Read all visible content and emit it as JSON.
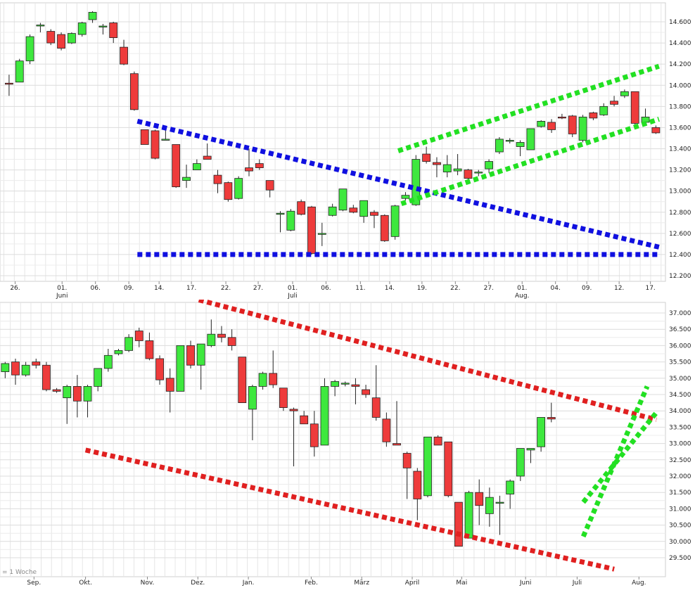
{
  "chart_data": [
    {
      "type": "candlestick",
      "interval_label": "",
      "x_ticks": [
        "26.",
        "01.",
        "06.",
        "09.",
        "14.",
        "17.",
        "22.",
        "27.",
        "01.",
        "06.",
        "11.",
        "14.",
        "19.",
        "22.",
        "27.",
        "01.",
        "04.",
        "09.",
        "12.",
        "17."
      ],
      "month_labels": [
        {
          "tick_index": 1,
          "label": "Juni"
        },
        {
          "tick_index": 8,
          "label": "Juli"
        },
        {
          "tick_index": 15,
          "label": "Aug."
        }
      ],
      "ylim": [
        12150,
        14850
      ],
      "y_ticks": [
        12200,
        12400,
        12600,
        12800,
        13000,
        13200,
        13400,
        13600,
        13800,
        14000,
        14200,
        14400,
        14600
      ],
      "y_tick_labels": [
        "12.200",
        "12.400",
        "12.600",
        "12.800",
        "13.000",
        "13.200",
        "13.400",
        "13.600",
        "13.800",
        "14.000",
        "14.200",
        "14.400",
        "14.600"
      ],
      "candles": [
        {
          "o": 14020,
          "h": 14100,
          "l": 13900,
          "c": 14010
        },
        {
          "o": 14030,
          "h": 14250,
          "l": 14030,
          "c": 14230
        },
        {
          "o": 14230,
          "h": 14480,
          "l": 14200,
          "c": 14460
        },
        {
          "o": 14570,
          "h": 14590,
          "l": 14500,
          "c": 14570
        },
        {
          "o": 14510,
          "h": 14530,
          "l": 14380,
          "c": 14400
        },
        {
          "o": 14480,
          "h": 14500,
          "l": 14330,
          "c": 14350
        },
        {
          "o": 14400,
          "h": 14500,
          "l": 14390,
          "c": 14490
        },
        {
          "o": 14480,
          "h": 14600,
          "l": 14460,
          "c": 14590
        },
        {
          "o": 14620,
          "h": 14700,
          "l": 14590,
          "c": 14690
        },
        {
          "o": 14560,
          "h": 14580,
          "l": 14480,
          "c": 14560
        },
        {
          "o": 14590,
          "h": 14600,
          "l": 14400,
          "c": 14450
        },
        {
          "o": 14360,
          "h": 14430,
          "l": 14190,
          "c": 14200
        },
        {
          "o": 14110,
          "h": 14130,
          "l": 13760,
          "c": 13770
        },
        {
          "o": 13580,
          "h": 13580,
          "l": 13440,
          "c": 13440
        },
        {
          "o": 13570,
          "h": 13580,
          "l": 13300,
          "c": 13310
        },
        {
          "o": 13490,
          "h": 13600,
          "l": 13480,
          "c": 13490
        },
        {
          "o": 13440,
          "h": 13440,
          "l": 13030,
          "c": 13040
        },
        {
          "o": 13100,
          "h": 13250,
          "l": 13030,
          "c": 13130
        },
        {
          "o": 13200,
          "h": 13300,
          "l": 13200,
          "c": 13260
        },
        {
          "o": 13330,
          "h": 13450,
          "l": 13300,
          "c": 13300
        },
        {
          "o": 13150,
          "h": 13200,
          "l": 12980,
          "c": 13070
        },
        {
          "o": 13080,
          "h": 13090,
          "l": 12900,
          "c": 12920
        },
        {
          "o": 12930,
          "h": 13140,
          "l": 12920,
          "c": 13120
        },
        {
          "o": 13220,
          "h": 13400,
          "l": 13140,
          "c": 13190
        },
        {
          "o": 13260,
          "h": 13300,
          "l": 13200,
          "c": 13220
        },
        {
          "o": 13100,
          "h": 13100,
          "l": 12940,
          "c": 13010
        },
        {
          "o": 12790,
          "h": 12810,
          "l": 12610,
          "c": 12790
        },
        {
          "o": 12630,
          "h": 12830,
          "l": 12620,
          "c": 12810
        },
        {
          "o": 12900,
          "h": 12920,
          "l": 12770,
          "c": 12780
        },
        {
          "o": 12850,
          "h": 12860,
          "l": 12400,
          "c": 12410
        },
        {
          "o": 12590,
          "h": 12700,
          "l": 12480,
          "c": 12600
        },
        {
          "o": 12770,
          "h": 12880,
          "l": 12760,
          "c": 12850
        },
        {
          "o": 12820,
          "h": 13020,
          "l": 12810,
          "c": 13020
        },
        {
          "o": 12840,
          "h": 12870,
          "l": 12790,
          "c": 12800
        },
        {
          "o": 12760,
          "h": 12910,
          "l": 12700,
          "c": 12910
        },
        {
          "o": 12800,
          "h": 12820,
          "l": 12650,
          "c": 12770
        },
        {
          "o": 12770,
          "h": 12780,
          "l": 12520,
          "c": 12530
        },
        {
          "o": 12570,
          "h": 12870,
          "l": 12540,
          "c": 12860
        },
        {
          "o": 12930,
          "h": 12990,
          "l": 12910,
          "c": 12960
        },
        {
          "o": 12870,
          "h": 13340,
          "l": 12860,
          "c": 13300
        },
        {
          "o": 13350,
          "h": 13420,
          "l": 13260,
          "c": 13280
        },
        {
          "o": 13270,
          "h": 13320,
          "l": 13130,
          "c": 13250
        },
        {
          "o": 13180,
          "h": 13340,
          "l": 13130,
          "c": 13250
        },
        {
          "o": 13190,
          "h": 13350,
          "l": 13150,
          "c": 13210
        },
        {
          "o": 13200,
          "h": 13210,
          "l": 13080,
          "c": 13120
        },
        {
          "o": 13180,
          "h": 13200,
          "l": 13140,
          "c": 13180
        },
        {
          "o": 13210,
          "h": 13300,
          "l": 13170,
          "c": 13280
        },
        {
          "o": 13370,
          "h": 13510,
          "l": 13350,
          "c": 13490
        },
        {
          "o": 13480,
          "h": 13500,
          "l": 13450,
          "c": 13480
        },
        {
          "o": 13420,
          "h": 13480,
          "l": 13330,
          "c": 13460
        },
        {
          "o": 13390,
          "h": 13590,
          "l": 13390,
          "c": 13590
        },
        {
          "o": 13610,
          "h": 13670,
          "l": 13600,
          "c": 13660
        },
        {
          "o": 13650,
          "h": 13680,
          "l": 13550,
          "c": 13580
        },
        {
          "o": 13700,
          "h": 13730,
          "l": 13680,
          "c": 13690
        },
        {
          "o": 13710,
          "h": 13720,
          "l": 13510,
          "c": 13540
        },
        {
          "o": 13480,
          "h": 13720,
          "l": 13460,
          "c": 13700
        },
        {
          "o": 13740,
          "h": 13750,
          "l": 13670,
          "c": 13690
        },
        {
          "o": 13720,
          "h": 13830,
          "l": 13710,
          "c": 13800
        },
        {
          "o": 13850,
          "h": 13900,
          "l": 13800,
          "c": 13820
        },
        {
          "o": 13900,
          "h": 13960,
          "l": 13880,
          "c": 13940
        },
        {
          "o": 13940,
          "h": 13940,
          "l": 13620,
          "c": 13640
        },
        {
          "o": 13650,
          "h": 13780,
          "l": 13640,
          "c": 13700
        },
        {
          "o": 13600,
          "h": 13620,
          "l": 13540,
          "c": 13550
        }
      ],
      "trendlines": [
        {
          "color": "#1010e0",
          "points": [
            [
              12.8,
              13660
            ],
            [
              62.8,
              12470
            ]
          ]
        },
        {
          "color": "#1010e0",
          "points": [
            [
              12.8,
              12400
            ],
            [
              62.8,
              12400
            ]
          ]
        },
        {
          "color": "#22e022",
          "points": [
            [
              37.8,
              13380
            ],
            [
              62.8,
              14180
            ]
          ]
        },
        {
          "color": "#22e022",
          "points": [
            [
              38.1,
              12880
            ],
            [
              62.8,
              13680
            ]
          ]
        }
      ]
    },
    {
      "type": "candlestick",
      "interval_label": "= 1 Woche",
      "x_ticks": [
        "Sep.",
        "Okt.",
        "Nov.",
        "Dez.",
        "Jan.",
        "Feb.",
        "März",
        "April",
        "Mai",
        "Juni",
        "Juli",
        "Aug."
      ],
      "ylim": [
        29000,
        37250
      ],
      "y_ticks": [
        29500,
        30000,
        30500,
        31000,
        31500,
        32000,
        32500,
        33000,
        33500,
        34000,
        34500,
        35000,
        35500,
        36000,
        36500,
        37000
      ],
      "y_tick_labels": [
        "29.500",
        "30.000",
        "30.500",
        "31.000",
        "31.500",
        "32.000",
        "32.500",
        "33.000",
        "33.500",
        "34.000",
        "34.500",
        "35.000",
        "35.500",
        "36.000",
        "36.500",
        "37.000"
      ],
      "candles": [
        {
          "o": 35200,
          "h": 35500,
          "l": 35000,
          "c": 35450
        },
        {
          "o": 35500,
          "h": 35600,
          "l": 34800,
          "c": 35100
        },
        {
          "o": 35100,
          "h": 35500,
          "l": 35050,
          "c": 35400
        },
        {
          "o": 35500,
          "h": 35600,
          "l": 35300,
          "c": 35400
        },
        {
          "o": 35400,
          "h": 35500,
          "l": 34600,
          "c": 34650
        },
        {
          "o": 34650,
          "h": 34700,
          "l": 34550,
          "c": 34600
        },
        {
          "o": 34400,
          "h": 34800,
          "l": 33600,
          "c": 34750
        },
        {
          "o": 34750,
          "h": 35100,
          "l": 33800,
          "c": 34300
        },
        {
          "o": 34300,
          "h": 34800,
          "l": 33800,
          "c": 34750
        },
        {
          "o": 34750,
          "h": 35300,
          "l": 34600,
          "c": 35300
        },
        {
          "o": 35300,
          "h": 35900,
          "l": 35200,
          "c": 35700
        },
        {
          "o": 35750,
          "h": 35900,
          "l": 35700,
          "c": 35850
        },
        {
          "o": 35850,
          "h": 36350,
          "l": 35800,
          "c": 36250
        },
        {
          "o": 36450,
          "h": 36550,
          "l": 35950,
          "c": 36150
        },
        {
          "o": 36150,
          "h": 36400,
          "l": 35550,
          "c": 35600
        },
        {
          "o": 35600,
          "h": 35700,
          "l": 34800,
          "c": 34950
        },
        {
          "o": 35000,
          "h": 35300,
          "l": 33950,
          "c": 34600
        },
        {
          "o": 34600,
          "h": 36000,
          "l": 34600,
          "c": 36000
        },
        {
          "o": 36000,
          "h": 36150,
          "l": 35300,
          "c": 35400
        },
        {
          "o": 35400,
          "h": 36050,
          "l": 34650,
          "c": 36050
        },
        {
          "o": 36000,
          "h": 36800,
          "l": 35950,
          "c": 36350
        },
        {
          "o": 36350,
          "h": 36600,
          "l": 36100,
          "c": 36250
        },
        {
          "o": 36250,
          "h": 36500,
          "l": 35850,
          "c": 36000
        },
        {
          "o": 35650,
          "h": 35650,
          "l": 34250,
          "c": 34250
        },
        {
          "o": 34050,
          "h": 34800,
          "l": 33100,
          "c": 34750
        },
        {
          "o": 34750,
          "h": 35200,
          "l": 34650,
          "c": 35150
        },
        {
          "o": 35150,
          "h": 35850,
          "l": 34700,
          "c": 34800
        },
        {
          "o": 34700,
          "h": 34700,
          "l": 34000,
          "c": 34100
        },
        {
          "o": 34050,
          "h": 34100,
          "l": 32300,
          "c": 34000
        },
        {
          "o": 33850,
          "h": 34000,
          "l": 33600,
          "c": 33600
        },
        {
          "o": 33600,
          "h": 34000,
          "l": 32600,
          "c": 32900
        },
        {
          "o": 32950,
          "h": 35000,
          "l": 32950,
          "c": 34750
        },
        {
          "o": 34750,
          "h": 34950,
          "l": 34450,
          "c": 34900
        },
        {
          "o": 34850,
          "h": 34900,
          "l": 34750,
          "c": 34850
        },
        {
          "o": 34800,
          "h": 35000,
          "l": 34200,
          "c": 34750
        },
        {
          "o": 34650,
          "h": 34800,
          "l": 34400,
          "c": 34500
        },
        {
          "o": 34400,
          "h": 35400,
          "l": 33700,
          "c": 33800
        },
        {
          "o": 33750,
          "h": 33950,
          "l": 32900,
          "c": 33050
        },
        {
          "o": 33000,
          "h": 34300,
          "l": 32950,
          "c": 32950
        },
        {
          "o": 32700,
          "h": 32750,
          "l": 31300,
          "c": 32250
        },
        {
          "o": 32150,
          "h": 32250,
          "l": 30650,
          "c": 31300
        },
        {
          "o": 31400,
          "h": 33200,
          "l": 31350,
          "c": 33200
        },
        {
          "o": 33200,
          "h": 33250,
          "l": 32950,
          "c": 32950
        },
        {
          "o": 33050,
          "h": 33050,
          "l": 31350,
          "c": 31400
        },
        {
          "o": 31200,
          "h": 31200,
          "l": 29850,
          "c": 29850
        },
        {
          "o": 30100,
          "h": 31550,
          "l": 30100,
          "c": 31500
        },
        {
          "o": 31500,
          "h": 31900,
          "l": 30500,
          "c": 31100
        },
        {
          "o": 30850,
          "h": 31650,
          "l": 30450,
          "c": 31350
        },
        {
          "o": 31200,
          "h": 31400,
          "l": 30200,
          "c": 31200
        },
        {
          "o": 31450,
          "h": 31900,
          "l": 31000,
          "c": 31850
        },
        {
          "o": 32000,
          "h": 32850,
          "l": 31850,
          "c": 32850
        },
        {
          "o": 32800,
          "h": 32850,
          "l": 32400,
          "c": 32850
        },
        {
          "o": 32900,
          "h": 33800,
          "l": 32750,
          "c": 33800
        },
        {
          "o": 33800,
          "h": 34250,
          "l": 33650,
          "c": 33750
        }
      ],
      "trendlines": [
        {
          "color": "#e02020",
          "points": [
            [
              19.3,
              37400
            ],
            [
              63.7,
              33730
            ]
          ]
        },
        {
          "color": "#e02020",
          "points": [
            [
              8.3,
              32800
            ],
            [
              59.6,
              29150
            ]
          ]
        },
        {
          "color": "#22e022",
          "points": [
            [
              56.6,
              30150
            ],
            [
              62.8,
              34750
            ]
          ]
        },
        {
          "color": "#22e022",
          "points": [
            [
              56.6,
              31200
            ],
            [
              63.7,
              33950
            ]
          ]
        }
      ]
    }
  ]
}
